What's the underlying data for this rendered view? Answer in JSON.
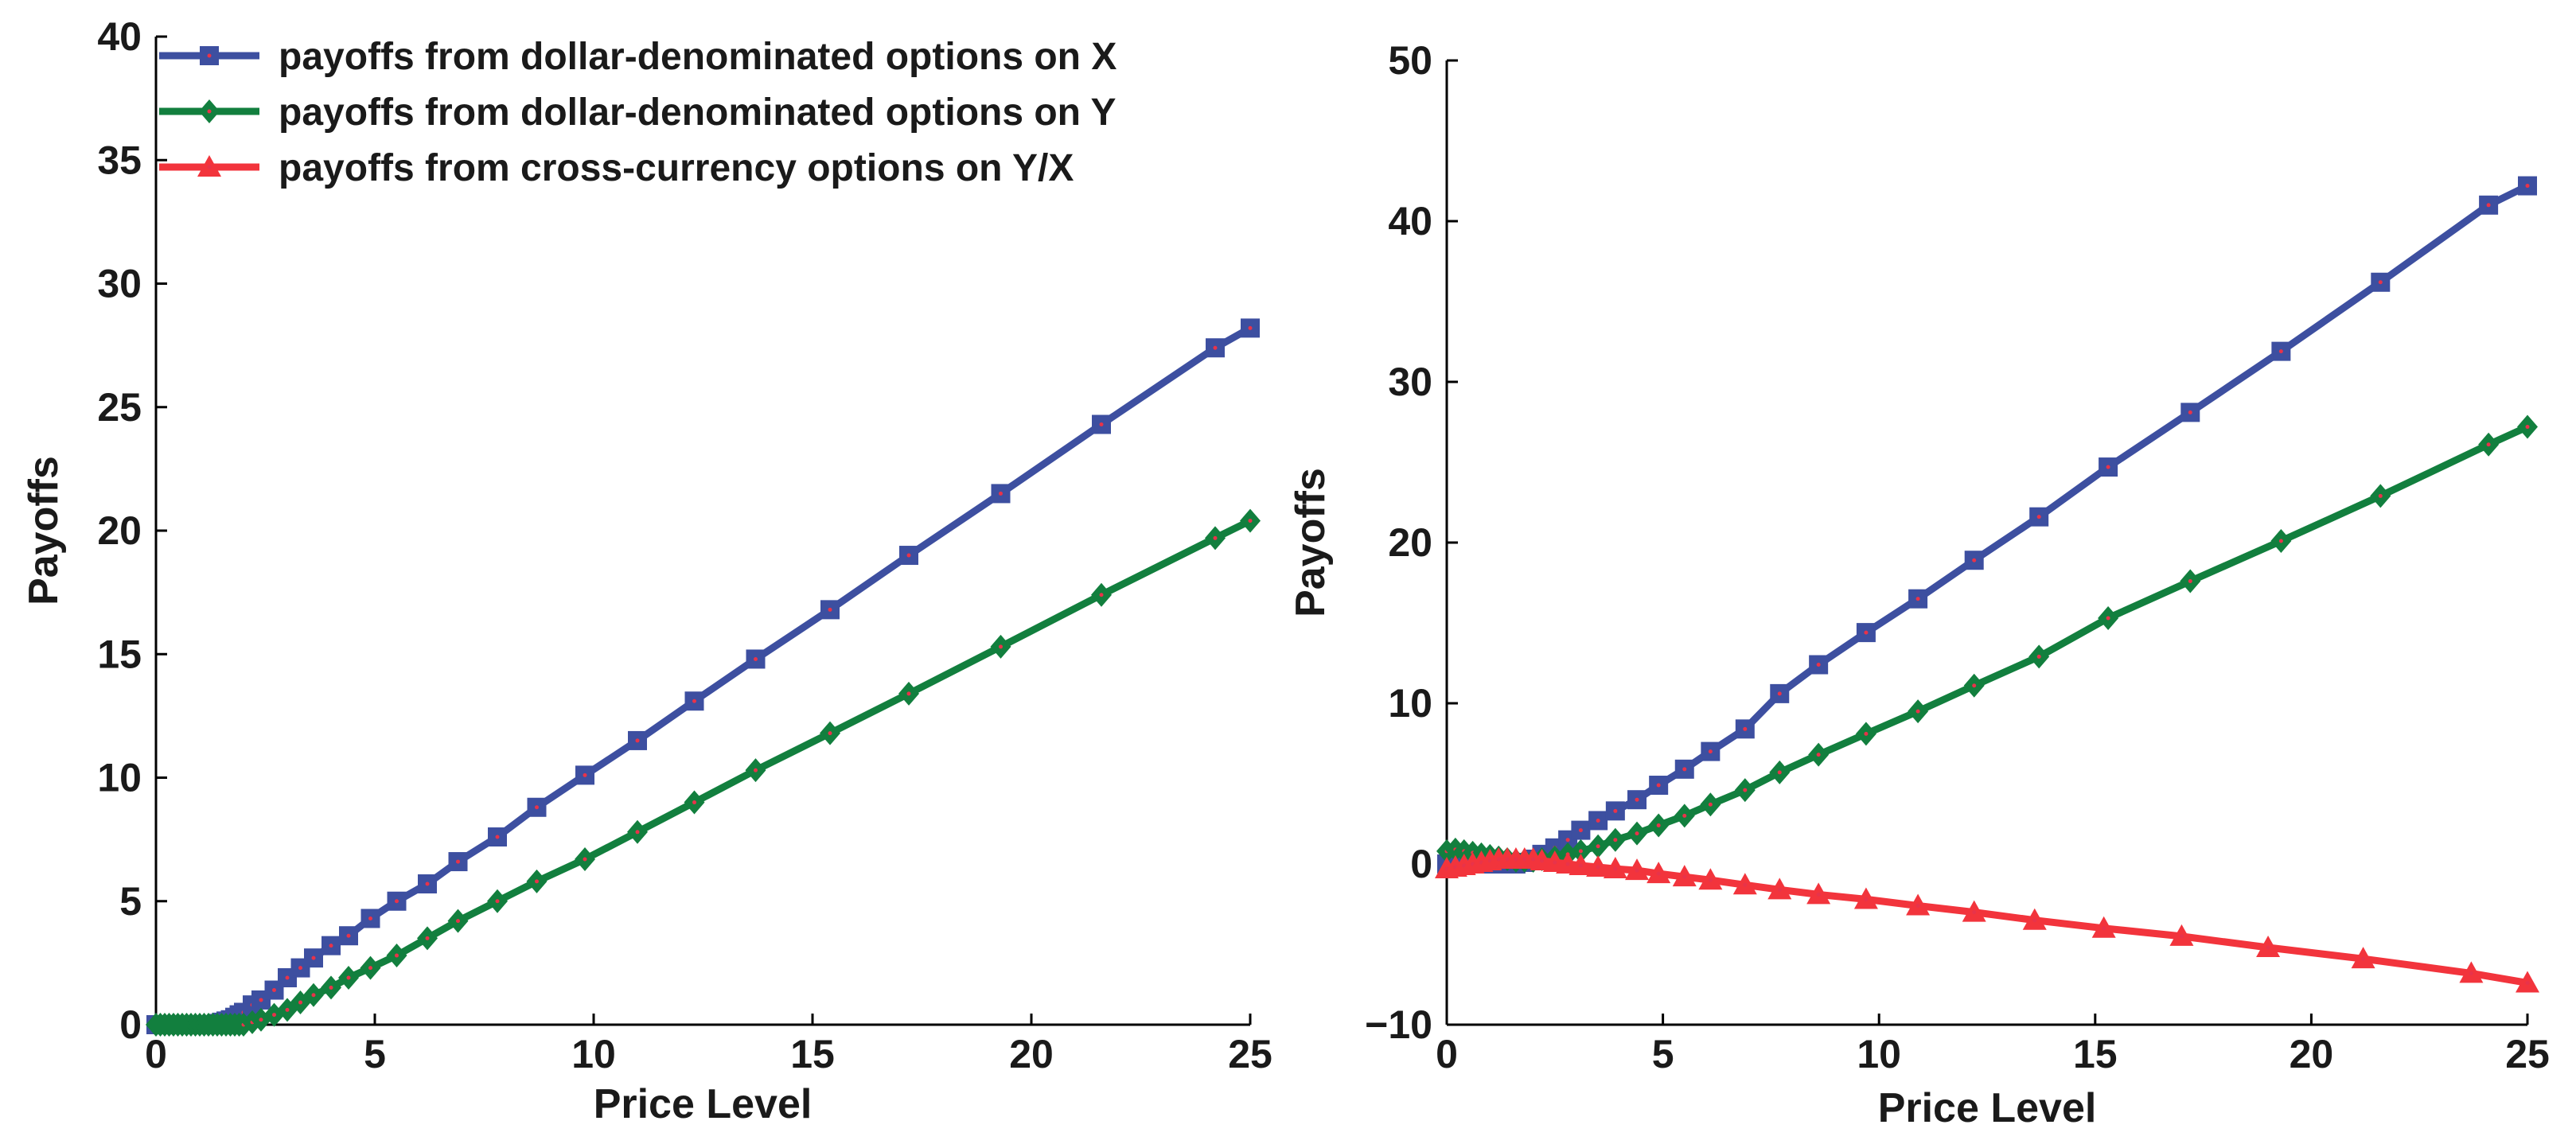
{
  "chart_data": [
    {
      "type": "line",
      "xlabel": "Price Level",
      "ylabel": "Payoffs",
      "xlim": [
        0,
        25
      ],
      "ylim": [
        0,
        40
      ],
      "xticks": [
        "0",
        "5",
        "10",
        "15",
        "20",
        "25"
      ],
      "yticks": [
        "0",
        "5",
        "10",
        "15",
        "20",
        "25",
        "30",
        "35",
        "40"
      ],
      "legend_position": "top-left",
      "series": [
        {
          "name": "payoffs from dollar-denominated options on X",
          "color": "#3d4fa0",
          "marker": "square",
          "x": [
            0,
            0.1,
            0.2,
            0.3,
            0.4,
            0.5,
            0.6,
            0.7,
            0.8,
            0.9,
            1.0,
            1.1,
            1.2,
            1.3,
            1.4,
            1.5,
            1.6,
            1.7,
            1.8,
            1.9,
            2.0,
            2.2,
            2.4,
            2.7,
            3.0,
            3.3,
            3.6,
            4.0,
            4.4,
            4.9,
            5.5,
            6.2,
            6.9,
            7.8,
            8.7,
            9.8,
            11.0,
            12.3,
            13.7,
            15.4,
            17.2,
            19.3,
            21.6,
            24.2,
            25.0
          ],
          "y": [
            0,
            0,
            0,
            0,
            0,
            0,
            0,
            0,
            0,
            0,
            0,
            0,
            0,
            0,
            0.05,
            0.1,
            0.15,
            0.2,
            0.3,
            0.4,
            0.5,
            0.8,
            1.0,
            1.4,
            1.9,
            2.3,
            2.7,
            3.2,
            3.6,
            4.3,
            5.0,
            5.7,
            6.6,
            7.6,
            8.8,
            10.1,
            11.5,
            13.1,
            14.8,
            16.8,
            19.0,
            21.5,
            24.3,
            27.4,
            28.2
          ]
        },
        {
          "name": "payoffs from dollar-denominated options on Y",
          "color": "#127f3e",
          "marker": "diamond",
          "x": [
            0,
            0.1,
            0.2,
            0.3,
            0.4,
            0.5,
            0.6,
            0.7,
            0.8,
            0.9,
            1.0,
            1.1,
            1.2,
            1.3,
            1.4,
            1.5,
            1.6,
            1.7,
            1.8,
            1.9,
            2.0,
            2.2,
            2.4,
            2.7,
            3.0,
            3.3,
            3.6,
            4.0,
            4.4,
            4.9,
            5.5,
            6.2,
            6.9,
            7.8,
            8.7,
            9.8,
            11.0,
            12.3,
            13.7,
            15.4,
            17.2,
            19.3,
            21.6,
            24.2,
            25.0
          ],
          "y": [
            0,
            0,
            0,
            0,
            0,
            0,
            0,
            0,
            0,
            0,
            0,
            0,
            0,
            0,
            0,
            0,
            0,
            0,
            0,
            0,
            0,
            0.1,
            0.2,
            0.4,
            0.6,
            0.9,
            1.2,
            1.5,
            1.9,
            2.3,
            2.8,
            3.5,
            4.2,
            5.0,
            5.8,
            6.7,
            7.8,
            9.0,
            10.3,
            11.8,
            13.4,
            15.3,
            17.4,
            19.7,
            20.4
          ]
        }
      ]
    },
    {
      "type": "line",
      "xlabel": "Price Level",
      "ylabel": "Payoffs",
      "xlim": [
        0,
        25
      ],
      "ylim": [
        -10,
        50
      ],
      "xticks": [
        "0",
        "5",
        "10",
        "15",
        "20",
        "25"
      ],
      "yticks": [
        "−10",
        "0",
        "10",
        "20",
        "30",
        "40",
        "50"
      ],
      "series": [
        {
          "name": "payoffs from dollar-denominated options on X",
          "color": "#3d4fa0",
          "marker": "square",
          "x": [
            0,
            0.2,
            0.4,
            0.6,
            0.8,
            1.0,
            1.2,
            1.4,
            1.6,
            1.8,
            2.0,
            2.2,
            2.5,
            2.8,
            3.1,
            3.5,
            3.9,
            4.4,
            4.9,
            5.5,
            6.1,
            6.9,
            7.7,
            8.6,
            9.7,
            10.9,
            12.2,
            13.7,
            15.3,
            17.2,
            19.3,
            21.6,
            24.1,
            25.0
          ],
          "y": [
            0,
            0,
            0,
            0,
            0,
            0,
            0,
            0,
            0,
            0.1,
            0.3,
            0.6,
            1.0,
            1.5,
            2.1,
            2.7,
            3.3,
            4.0,
            4.9,
            5.9,
            7.0,
            8.4,
            10.6,
            12.4,
            14.4,
            16.5,
            18.9,
            21.6,
            24.7,
            28.1,
            31.9,
            36.2,
            41.0,
            42.2
          ]
        },
        {
          "name": "payoffs from dollar-denominated options on Y",
          "color": "#127f3e",
          "marker": "diamond",
          "x": [
            0,
            0.2,
            0.4,
            0.6,
            0.8,
            1.0,
            1.2,
            1.4,
            1.6,
            1.8,
            2.0,
            2.2,
            2.5,
            2.8,
            3.1,
            3.5,
            3.9,
            4.4,
            4.9,
            5.5,
            6.1,
            6.9,
            7.7,
            8.6,
            9.7,
            10.9,
            12.2,
            13.7,
            15.3,
            17.2,
            19.3,
            21.6,
            24.1,
            25.0
          ],
          "y": [
            0.8,
            0.9,
            0.8,
            0.7,
            0.6,
            0.5,
            0.4,
            0.3,
            0.2,
            0.2,
            0.2,
            0.3,
            0.4,
            0.6,
            0.8,
            1.1,
            1.5,
            1.9,
            2.4,
            3.0,
            3.7,
            4.6,
            5.7,
            6.8,
            8.1,
            9.5,
            11.1,
            12.9,
            15.3,
            17.6,
            20.1,
            22.9,
            26.1,
            27.2
          ]
        },
        {
          "name": "payoffs from cross-currency options on Y/X",
          "color": "#f2343c",
          "marker": "triangle",
          "x": [
            0,
            0.2,
            0.4,
            0.6,
            0.8,
            1.0,
            1.2,
            1.4,
            1.6,
            1.8,
            2.0,
            2.2,
            2.5,
            2.8,
            3.1,
            3.5,
            3.9,
            4.4,
            4.9,
            5.5,
            6.1,
            6.9,
            7.7,
            8.6,
            9.7,
            10.9,
            12.2,
            13.6,
            15.2,
            17.0,
            19.0,
            21.2,
            23.7,
            25.0
          ],
          "y": [
            -0.3,
            -0.2,
            -0.1,
            0,
            0.1,
            0.2,
            0.3,
            0.3,
            0.3,
            0.3,
            0.3,
            0.2,
            0.1,
            0,
            -0.1,
            -0.2,
            -0.3,
            -0.4,
            -0.6,
            -0.8,
            -1.0,
            -1.3,
            -1.6,
            -1.9,
            -2.2,
            -2.6,
            -3.0,
            -3.5,
            -4.0,
            -4.5,
            -5.2,
            -5.9,
            -6.8,
            -7.4
          ]
        }
      ]
    }
  ]
}
